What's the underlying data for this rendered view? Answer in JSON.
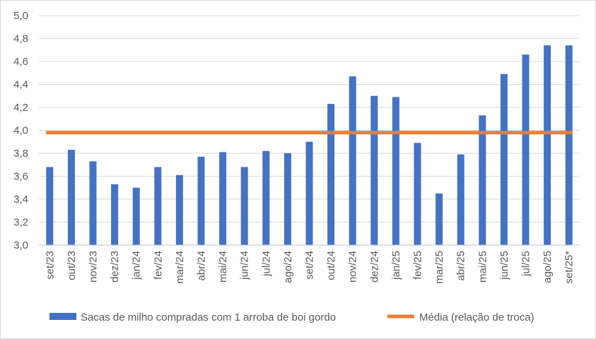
{
  "chart_data": {
    "type": "bar",
    "categories": [
      "set/23",
      "out/23",
      "nov/23",
      "dez/23",
      "jan/24",
      "fev/24",
      "mar/24",
      "abr/24",
      "mai/24",
      "jun/24",
      "jul/24",
      "ago/24",
      "set/24",
      "out/24",
      "nov/24",
      "dez/24",
      "jan/25",
      "fev/25",
      "mar/25",
      "abr/25",
      "mai/25",
      "jun/25",
      "jul/25",
      "ago/25",
      "set/25*"
    ],
    "series": [
      {
        "name": "Sacas de milho compradas com 1 arroba de boi gordo",
        "type": "bar",
        "color": "#4472c4",
        "values": [
          3.68,
          3.83,
          3.73,
          3.53,
          3.5,
          3.68,
          3.61,
          3.77,
          3.81,
          3.68,
          3.82,
          3.8,
          3.9,
          4.23,
          4.47,
          4.3,
          4.29,
          3.89,
          3.45,
          3.79,
          4.13,
          4.49,
          4.66,
          4.74,
          4.74
        ]
      },
      {
        "name": "Média (relação de troca)",
        "type": "line",
        "color": "#ed7d31",
        "value": 3.98
      }
    ],
    "ylim": [
      3.0,
      5.0
    ],
    "yticks": [
      "3,0",
      "3,2",
      "3,4",
      "3,6",
      "3,8",
      "4,0",
      "4,2",
      "4,4",
      "4,6",
      "4,8",
      "5,0"
    ],
    "ytick_step": 0.2,
    "grid": true,
    "legend": "bottom",
    "title": "",
    "xlabel": "",
    "ylabel": ""
  }
}
